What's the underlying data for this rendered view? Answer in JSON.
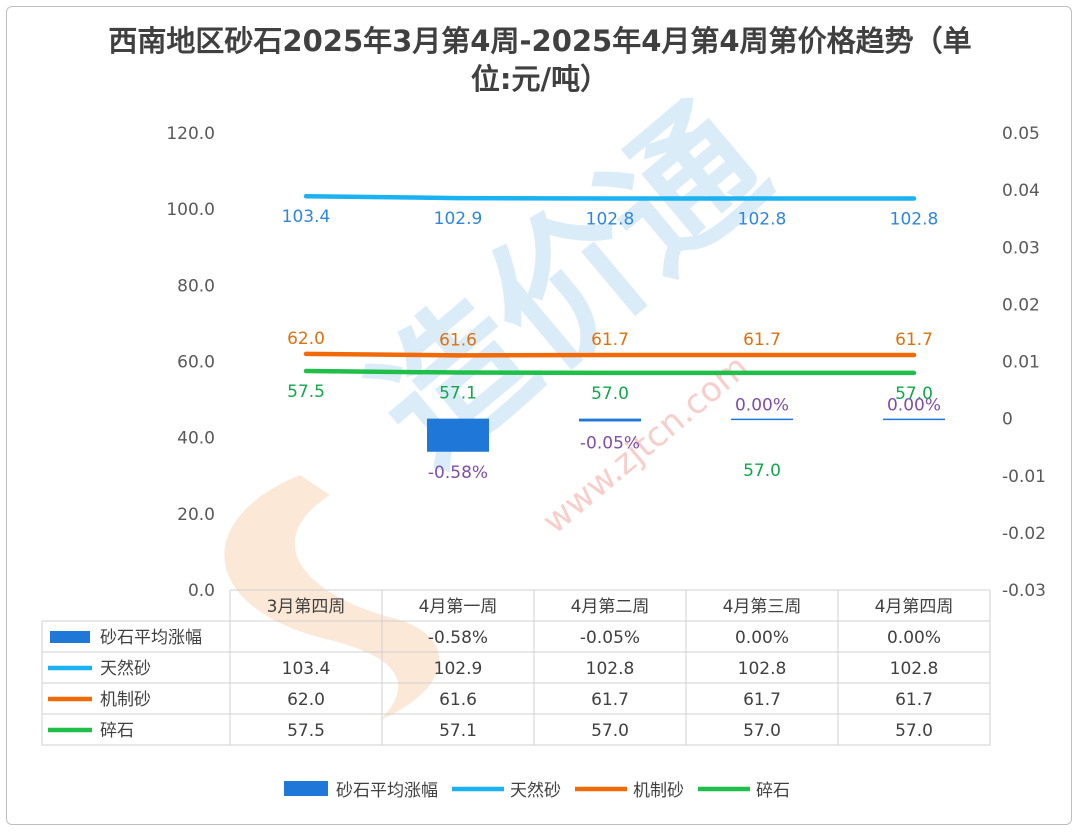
{
  "title": "西南地区砂石2025年3月第4周-2025年4月第4周第价格趋势（单位:元/吨）",
  "watermark": {
    "brand": "造价通",
    "url": "www.zjtcn.com"
  },
  "chart_data": {
    "type": "bar+line",
    "categories": [
      "3月第四周",
      "4月第一周",
      "4月第二周",
      "4月第三周",
      "4月第四周"
    ],
    "y_left": {
      "ticks": [
        "0.0",
        "20.0",
        "40.0",
        "60.0",
        "80.0",
        "100.0",
        "120.0"
      ],
      "ylim": [
        0,
        120
      ]
    },
    "y_right": {
      "ticks": [
        "-0.03",
        "-0.02",
        "-0.01",
        "0",
        "0.01",
        "0.02",
        "0.03",
        "0.04",
        "0.05"
      ],
      "ylim": [
        -0.03,
        0.05
      ]
    },
    "grid": false,
    "legend_position": "bottom",
    "series": [
      {
        "name": "砂石平均涨幅",
        "kind": "bar",
        "axis": "right",
        "color": "#1f77d8",
        "label_color": "#7f4ea8",
        "values": [
          null,
          -0.0058,
          -0.0005,
          0.0,
          0.0
        ],
        "labels": [
          "",
          "-0.58%",
          "-0.05%",
          "0.00%",
          "0.00%"
        ]
      },
      {
        "name": "天然砂",
        "kind": "line",
        "axis": "left",
        "color": "#1ab2f0",
        "label_color": "#2e86de",
        "values": [
          103.4,
          102.9,
          102.8,
          102.8,
          102.8
        ],
        "labels": [
          "103.4",
          "102.9",
          "102.8",
          "102.8",
          "102.8"
        ]
      },
      {
        "name": "机制砂",
        "kind": "line",
        "axis": "left",
        "color": "#f06a0a",
        "label_color": "#e0700e",
        "values": [
          62.0,
          61.6,
          61.7,
          61.7,
          61.7
        ],
        "labels": [
          "62.0",
          "61.6",
          "61.7",
          "61.7",
          "61.7"
        ]
      },
      {
        "name": "碎石",
        "kind": "line",
        "axis": "left",
        "color": "#1fbf4a",
        "label_color": "#12a84a",
        "values": [
          57.5,
          57.1,
          57.0,
          57.0,
          57.0
        ],
        "labels": [
          "57.5",
          "57.1",
          "57.0",
          "57.0",
          "57.0"
        ]
      }
    ],
    "table": {
      "rows": [
        {
          "name": "砂石平均涨幅",
          "cells": [
            "",
            "-0.58%",
            "-0.05%",
            "0.00%",
            "0.00%"
          ]
        },
        {
          "name": "天然砂",
          "cells": [
            "103.4",
            "102.9",
            "102.8",
            "102.8",
            "102.8"
          ]
        },
        {
          "name": "机制砂",
          "cells": [
            "62.0",
            "61.6",
            "61.7",
            "61.7",
            "61.7"
          ]
        },
        {
          "name": "碎石",
          "cells": [
            "57.5",
            "57.1",
            "57.0",
            "57.0",
            "57.0"
          ]
        }
      ]
    }
  }
}
